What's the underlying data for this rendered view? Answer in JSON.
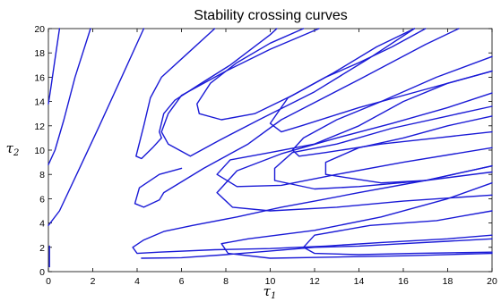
{
  "chart_data": {
    "type": "line",
    "title": "Stability crossing curves",
    "xlabel": "τ",
    "xlabel_sub": "1",
    "ylabel": "τ",
    "ylabel_sub": "2",
    "xlim": [
      0,
      20
    ],
    "ylim": [
      0,
      20
    ],
    "xticks": [
      0,
      2,
      4,
      6,
      8,
      10,
      12,
      14,
      16,
      18,
      20
    ],
    "yticks": [
      0,
      2,
      4,
      6,
      8,
      10,
      12,
      14,
      16,
      18,
      20
    ],
    "grid": false,
    "legend": "none",
    "line_color": "#1a1ad6",
    "series": [
      {
        "points": [
          [
            0.5,
            20
          ],
          [
            0.3,
            17.5
          ],
          [
            0.1,
            15
          ],
          [
            0,
            13.8
          ]
        ]
      },
      {
        "points": [
          [
            1.9,
            20
          ],
          [
            1.2,
            16
          ],
          [
            0.7,
            12.5
          ],
          [
            0.3,
            10
          ],
          [
            0,
            8.8
          ]
        ]
      },
      {
        "points": [
          [
            4.3,
            20
          ],
          [
            3.3,
            16
          ],
          [
            2.3,
            12
          ],
          [
            1.4,
            8.5
          ],
          [
            0.5,
            5
          ],
          [
            0,
            3.8
          ]
        ]
      },
      {
        "points": [
          [
            7.5,
            20
          ],
          [
            6.3,
            18
          ],
          [
            5.1,
            16
          ],
          [
            4.6,
            14.3
          ],
          [
            4.3,
            12
          ],
          [
            3.95,
            9.5
          ],
          [
            4.2,
            9.3
          ],
          [
            4.7,
            10.2
          ],
          [
            5.1,
            11
          ],
          [
            5.0,
            11.5
          ],
          [
            5.2,
            13
          ],
          [
            5.7,
            14.1
          ],
          [
            6.8,
            15.4
          ],
          [
            8.2,
            17
          ],
          [
            10.0,
            19.5
          ],
          [
            10.3,
            20
          ]
        ]
      },
      {
        "points": [
          [
            12.2,
            20
          ],
          [
            10.0,
            18.3
          ],
          [
            8.0,
            16.5
          ],
          [
            6.0,
            14.5
          ],
          [
            5.4,
            13
          ],
          [
            5.1,
            11.5
          ],
          [
            5.4,
            10.5
          ],
          [
            6.4,
            9.5
          ],
          [
            7.7,
            10.8
          ],
          [
            9.5,
            12.5
          ],
          [
            12.0,
            14.8
          ],
          [
            14.5,
            17.6
          ],
          [
            16.5,
            20
          ]
        ]
      },
      {
        "points": [
          [
            11.5,
            20
          ],
          [
            10.0,
            18.8
          ],
          [
            8.5,
            17.2
          ],
          [
            7.3,
            15.5
          ],
          [
            6.7,
            13.8
          ],
          [
            6.8,
            13.0
          ],
          [
            7.8,
            12.5
          ],
          [
            9.3,
            13.0
          ],
          [
            11.0,
            14.5
          ],
          [
            12.8,
            16.3
          ],
          [
            14.8,
            18.5
          ],
          [
            16.5,
            20
          ]
        ]
      },
      {
        "points": [
          [
            6.0,
            8.5
          ],
          [
            5.0,
            8.0
          ],
          [
            4.1,
            6.9
          ],
          [
            3.9,
            5.6
          ],
          [
            4.3,
            5.3
          ],
          [
            5.0,
            5.9
          ],
          [
            5.2,
            6.5
          ],
          [
            7.0,
            8.5
          ],
          [
            9.0,
            10.5
          ],
          [
            10.5,
            12.5
          ],
          [
            14.0,
            15.8
          ],
          [
            17.0,
            18.7
          ],
          [
            18.5,
            20
          ]
        ]
      },
      {
        "points": [
          [
            17.0,
            20
          ],
          [
            15.5,
            18.5
          ],
          [
            14.0,
            17.2
          ],
          [
            12.5,
            16.0
          ],
          [
            10.8,
            14.3
          ],
          [
            10.0,
            12.2
          ],
          [
            10.5,
            11.5
          ],
          [
            11.4,
            12.0
          ],
          [
            14.0,
            13.5
          ],
          [
            17.0,
            15.0
          ],
          [
            20.0,
            16.5
          ]
        ]
      },
      {
        "points": [
          [
            20,
            17.7
          ],
          [
            17.5,
            16.0
          ],
          [
            15,
            14.0
          ],
          [
            13.0,
            12.5
          ],
          [
            11.5,
            11.0
          ],
          [
            11.0,
            10.0
          ],
          [
            11.3,
            9.5
          ],
          [
            12.5,
            9.8
          ],
          [
            15.0,
            10.5
          ],
          [
            17.5,
            11.0
          ],
          [
            20,
            11.5
          ]
        ]
      },
      {
        "points": [
          [
            20,
            16.5
          ],
          [
            18.0,
            15.5
          ],
          [
            16.0,
            14.0
          ],
          [
            14.0,
            12.0
          ],
          [
            12.0,
            10.5
          ],
          [
            10.0,
            9.8
          ],
          [
            8.2,
            9.2
          ],
          [
            7.6,
            8.0
          ],
          [
            8.5,
            7.0
          ],
          [
            10.5,
            7.1
          ],
          [
            13.0,
            8.0
          ],
          [
            16.0,
            9.0
          ],
          [
            20,
            10.2
          ]
        ]
      },
      {
        "points": [
          [
            20,
            14.7
          ],
          [
            18.0,
            13.5
          ],
          [
            15.5,
            12.2
          ],
          [
            13.0,
            11.0
          ],
          [
            10.5,
            9.7
          ],
          [
            8.5,
            8.3
          ],
          [
            7.6,
            6.5
          ],
          [
            8.3,
            5.3
          ],
          [
            10.0,
            5.0
          ],
          [
            13.0,
            5.3
          ],
          [
            16.0,
            5.8
          ],
          [
            20,
            6.3
          ]
        ]
      },
      {
        "points": [
          [
            20,
            13.6
          ],
          [
            18.0,
            12.8
          ],
          [
            15.5,
            11.8
          ],
          [
            13.0,
            10.5
          ],
          [
            11.0,
            9.8
          ],
          [
            10.2,
            8.5
          ],
          [
            10.2,
            7.5
          ],
          [
            12.0,
            6.8
          ],
          [
            14.0,
            7.0
          ],
          [
            17.0,
            7.5
          ],
          [
            20,
            8.7
          ]
        ]
      },
      {
        "points": [
          [
            20,
            12.8
          ],
          [
            18.0,
            12.0
          ],
          [
            16.0,
            11.0
          ],
          [
            14.0,
            10.2
          ],
          [
            12.5,
            9.0
          ],
          [
            12.5,
            8.0
          ],
          [
            15.0,
            7.3
          ],
          [
            17.0,
            7.5
          ],
          [
            20,
            8.2
          ]
        ]
      },
      {
        "points": [
          [
            20,
            7.3
          ],
          [
            18.0,
            6.0
          ],
          [
            15.0,
            4.5
          ],
          [
            12.0,
            3.4
          ],
          [
            9.0,
            2.7
          ],
          [
            7.8,
            2.3
          ],
          [
            8.1,
            1.5
          ],
          [
            10.0,
            1.1
          ],
          [
            13.0,
            1.2
          ],
          [
            16.0,
            1.3
          ],
          [
            20,
            1.5
          ]
        ]
      },
      {
        "points": [
          [
            20,
            5.0
          ],
          [
            17.5,
            4.2
          ],
          [
            14.5,
            3.8
          ],
          [
            12.0,
            3.0
          ],
          [
            11.5,
            2.0
          ],
          [
            12.0,
            1.5
          ],
          [
            14.0,
            1.4
          ],
          [
            16.5,
            1.5
          ],
          [
            20,
            1.6
          ]
        ]
      },
      {
        "points": [
          [
            20,
            3.0
          ],
          [
            18.0,
            2.7
          ],
          [
            15.0,
            2.4
          ],
          [
            12.5,
            2.1
          ],
          [
            10.0,
            1.9
          ],
          [
            7.5,
            1.8
          ],
          [
            5.0,
            1.6
          ],
          [
            4.0,
            1.5
          ],
          [
            3.8,
            2.0
          ],
          [
            4.3,
            2.6
          ],
          [
            5.2,
            3.3
          ],
          [
            6.5,
            3.8
          ],
          [
            8.5,
            4.5
          ],
          [
            10.5,
            5.3
          ],
          [
            12.0,
            5.8
          ],
          [
            14.0,
            6.5
          ],
          [
            17.0,
            7.5
          ],
          [
            20,
            8.7
          ]
        ]
      },
      {
        "points": [
          [
            4.2,
            1.1
          ],
          [
            6.0,
            1.15
          ],
          [
            8.0,
            1.4
          ],
          [
            10.0,
            1.7
          ],
          [
            12.0,
            2.0
          ],
          [
            14.0,
            2.1
          ],
          [
            16.0,
            2.3
          ],
          [
            18.0,
            2.5
          ],
          [
            20,
            2.7
          ]
        ]
      },
      {
        "points": [
          [
            0.05,
            0.4
          ],
          [
            0.05,
            2.1
          ]
        ]
      }
    ]
  }
}
